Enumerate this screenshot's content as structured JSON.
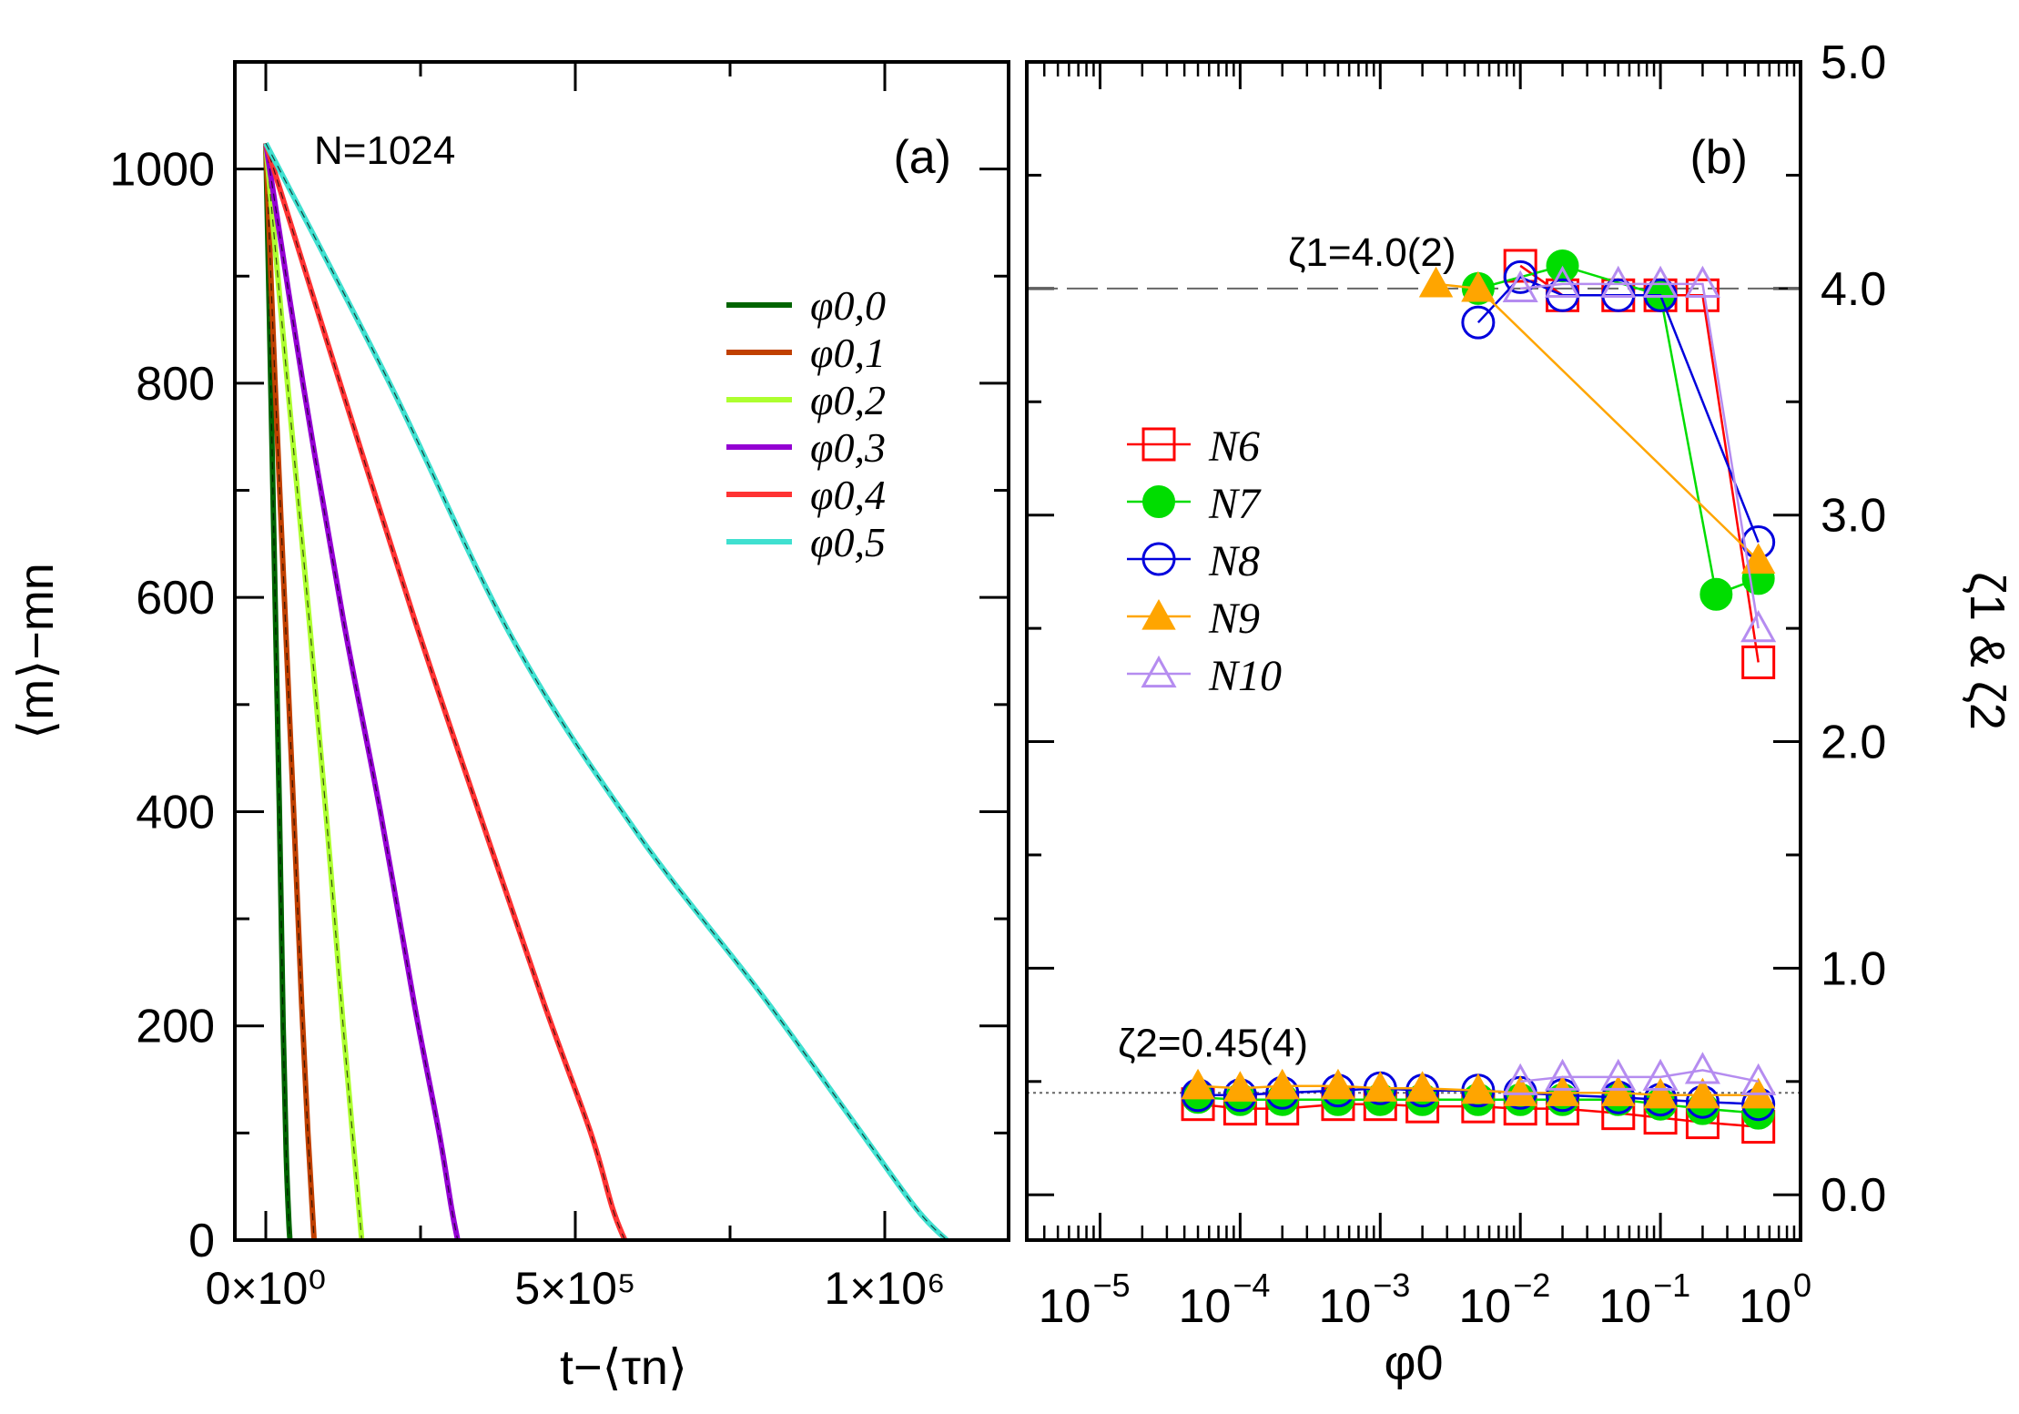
{
  "chart_data": [
    {
      "panel": "a",
      "type": "line",
      "panel_label": "(a)",
      "annotation": "N=1024",
      "xlabel": "t−⟨τn⟩",
      "ylabel": "⟨m⟩−mn",
      "xlim": [
        -50000,
        1200000
      ],
      "ylim": [
        0,
        1100
      ],
      "xticks": [
        {
          "value": 0,
          "label": "0×10⁰"
        },
        {
          "value": 500000,
          "label": "5×10⁵"
        },
        {
          "value": 1000000,
          "label": "1×10⁶"
        }
      ],
      "yticks": [
        0,
        200,
        400,
        600,
        800,
        1000
      ],
      "legend_position": "right-center",
      "series": [
        {
          "name": "φ0,0",
          "color": "#006400",
          "x": [
            0,
            8000,
            15000,
            22000,
            28000,
            33000,
            37000,
            39000
          ],
          "y": [
            1024,
            800,
            600,
            400,
            200,
            80,
            20,
            0
          ]
        },
        {
          "name": "φ0,1",
          "color": "#c04000",
          "x": [
            0,
            15000,
            30000,
            45000,
            58000,
            68000,
            75000,
            78000
          ],
          "y": [
            1024,
            800,
            600,
            400,
            220,
            100,
            30,
            0
          ]
        },
        {
          "name": "φ0,2",
          "color": "#adff2f",
          "x": [
            0,
            35000,
            70000,
            100000,
            125000,
            143000,
            152000,
            155000
          ],
          "y": [
            1024,
            800,
            580,
            380,
            200,
            80,
            20,
            0
          ]
        },
        {
          "name": "φ0,3",
          "color": "#9400d3",
          "x": [
            0,
            60000,
            125000,
            185000,
            240000,
            280000,
            300000,
            310000
          ],
          "y": [
            1024,
            800,
            580,
            400,
            220,
            100,
            30,
            0
          ]
        },
        {
          "name": "φ0,4",
          "color": "#ff3333",
          "x": [
            0,
            120000,
            240000,
            350000,
            450000,
            525000,
            560000,
            580000
          ],
          "y": [
            1024,
            800,
            580,
            390,
            220,
            100,
            30,
            0
          ]
        },
        {
          "name": "φ0,5",
          "color": "#40e0d0",
          "x": [
            0,
            200000,
            400000,
            600000,
            800000,
            950000,
            1050000,
            1100000
          ],
          "y": [
            1024,
            800,
            560,
            380,
            230,
            110,
            30,
            0
          ]
        }
      ]
    },
    {
      "panel": "b",
      "type": "scatter",
      "panel_label": "(b)",
      "xlabel": "φ0",
      "ylabel": "ζ1 & ζ2",
      "xscale": "log",
      "xlim": [
        3e-06,
        1
      ],
      "ylim": [
        -0.2,
        5.0
      ],
      "xticks": [
        {
          "value": 1e-05,
          "base": "10",
          "exp": "−5"
        },
        {
          "value": 0.0001,
          "base": "10",
          "exp": "−4"
        },
        {
          "value": 0.001,
          "base": "10",
          "exp": "−3"
        },
        {
          "value": 0.01,
          "base": "10",
          "exp": "−2"
        },
        {
          "value": 0.1,
          "base": "10",
          "exp": "−1"
        },
        {
          "value": 1,
          "base": "10",
          "exp": "0"
        }
      ],
      "yticks": [
        {
          "value": 0.0,
          "label": "0.0"
        },
        {
          "value": 1.0,
          "label": "1.0"
        },
        {
          "value": 2.0,
          "label": "2.0"
        },
        {
          "value": 3.0,
          "label": "3.0"
        },
        {
          "value": 4.0,
          "label": "4.0"
        },
        {
          "value": 5.0,
          "label": "5.0"
        }
      ],
      "ref_lines": [
        {
          "name": "ζ1=4.0(2)",
          "value": 4.0,
          "style": "dashed"
        },
        {
          "name": "ζ2=0.45(4)",
          "value": 0.45,
          "style": "dotted"
        }
      ],
      "legend_position": "left-center",
      "series": [
        {
          "name": "N6",
          "color": "#ff0000",
          "marker": "open-square",
          "zeta1": {
            "x": [
              0.01,
              0.02,
              0.05,
              0.1,
              0.2,
              0.5
            ],
            "y": [
              4.1,
              3.97,
              3.97,
              3.97,
              3.97,
              2.35
            ]
          },
          "zeta2": {
            "x": [
              5e-05,
              0.0001,
              0.0002,
              0.0005,
              0.001,
              0.002,
              0.005,
              0.01,
              0.02,
              0.05,
              0.1,
              0.2,
              0.5
            ],
            "y": [
              0.4,
              0.38,
              0.38,
              0.4,
              0.4,
              0.39,
              0.39,
              0.38,
              0.38,
              0.36,
              0.34,
              0.32,
              0.3
            ]
          }
        },
        {
          "name": "N7",
          "color": "#00dd00",
          "marker": "filled-circle",
          "zeta1": {
            "x": [
              0.005,
              0.02,
              0.1,
              0.25,
              0.5
            ],
            "y": [
              4.0,
              4.1,
              3.97,
              2.65,
              2.72
            ]
          },
          "zeta2": {
            "x": [
              5e-05,
              0.0001,
              0.0002,
              0.0005,
              0.001,
              0.002,
              0.005,
              0.01,
              0.02,
              0.05,
              0.1,
              0.2,
              0.5
            ],
            "y": [
              0.43,
              0.42,
              0.42,
              0.42,
              0.42,
              0.42,
              0.42,
              0.42,
              0.42,
              0.42,
              0.4,
              0.38,
              0.36
            ]
          }
        },
        {
          "name": "N8",
          "color": "#0000dd",
          "marker": "open-circle",
          "zeta1": {
            "x": [
              0.005,
              0.01,
              0.02,
              0.05,
              0.1,
              0.5
            ],
            "y": [
              3.85,
              4.05,
              3.97,
              3.97,
              3.97,
              2.88
            ]
          },
          "zeta2": {
            "x": [
              5e-05,
              0.0001,
              0.0002,
              0.0005,
              0.001,
              0.002,
              0.005,
              0.01,
              0.02,
              0.05,
              0.1,
              0.2,
              0.5
            ],
            "y": [
              0.44,
              0.44,
              0.45,
              0.46,
              0.47,
              0.46,
              0.46,
              0.45,
              0.44,
              0.43,
              0.42,
              0.41,
              0.4
            ]
          }
        },
        {
          "name": "N9",
          "color": "#ffa500",
          "marker": "filled-triangle",
          "zeta1": {
            "x": [
              0.0025,
              0.005,
              0.5
            ],
            "y": [
              4.02,
              4.0,
              2.8
            ]
          },
          "zeta2": {
            "x": [
              5e-05,
              0.0001,
              0.0002,
              0.0005,
              0.001,
              0.002,
              0.005,
              0.01,
              0.02,
              0.05,
              0.1,
              0.2,
              0.5
            ],
            "y": [
              0.48,
              0.47,
              0.48,
              0.48,
              0.47,
              0.47,
              0.46,
              0.45,
              0.45,
              0.45,
              0.44,
              0.44,
              0.44
            ]
          }
        },
        {
          "name": "N10",
          "color": "#b58cf0",
          "marker": "open-triangle",
          "zeta1": {
            "x": [
              0.01,
              0.02,
              0.05,
              0.1,
              0.2,
              0.5
            ],
            "y": [
              4.0,
              4.02,
              4.02,
              4.02,
              4.02,
              2.5
            ]
          },
          "zeta2": {
            "x": [
              0.01,
              0.02,
              0.05,
              0.1,
              0.2,
              0.5
            ],
            "y": [
              0.5,
              0.52,
              0.52,
              0.52,
              0.55,
              0.5
            ]
          }
        }
      ]
    }
  ]
}
